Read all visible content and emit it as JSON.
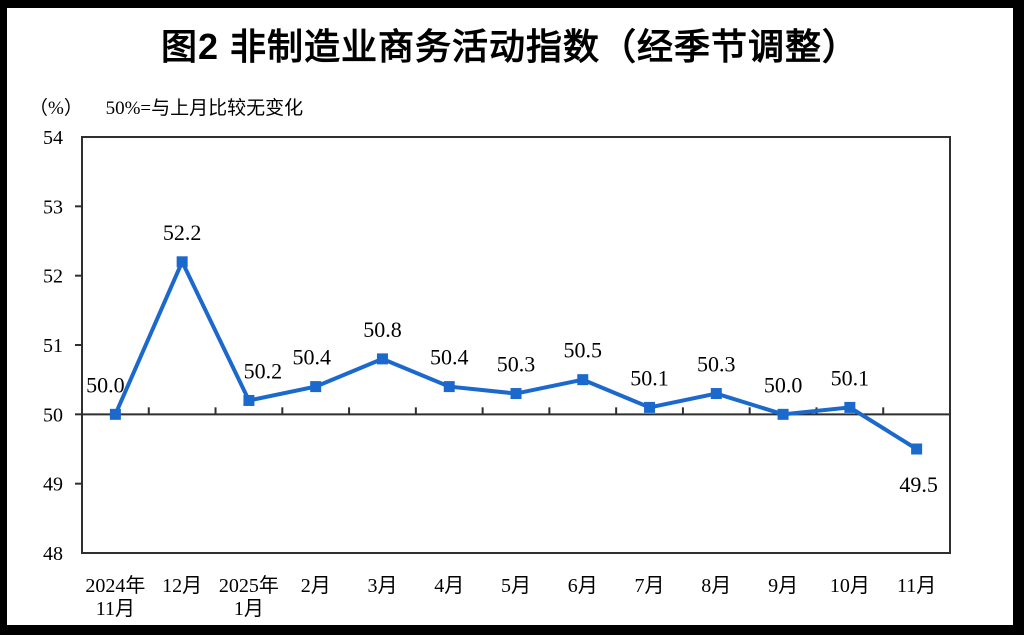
{
  "title": "图2 非制造业商务活动指数（经季节调整）",
  "unit_label": "（%）",
  "reference_note": "50%=与上月比较无变化",
  "chart_data": {
    "type": "line",
    "title": "图2 非制造业商务活动指数（经季节调整）",
    "ylabel": "%",
    "ylim": [
      48,
      54
    ],
    "yticks": [
      48,
      49,
      50,
      51,
      52,
      53,
      54
    ],
    "reference_line_y": 50,
    "grid": false,
    "legend_position": "none",
    "line_color": "#1C69CD",
    "axis_color": "#2f2f2f",
    "marker": "square",
    "categories": [
      "2024年11月",
      "12月",
      "2025年1月",
      "2月",
      "3月",
      "4月",
      "5月",
      "6月",
      "7月",
      "8月",
      "9月",
      "10月",
      "11月"
    ],
    "category_lines": [
      [
        "2024年",
        "11月"
      ],
      [
        "12月",
        ""
      ],
      [
        "2025年",
        "1月"
      ],
      [
        "2月",
        ""
      ],
      [
        "3月",
        ""
      ],
      [
        "4月",
        ""
      ],
      [
        "5月",
        ""
      ],
      [
        "6月",
        ""
      ],
      [
        "7月",
        ""
      ],
      [
        "8月",
        ""
      ],
      [
        "9月",
        ""
      ],
      [
        "10月",
        ""
      ],
      [
        "11月",
        ""
      ]
    ],
    "values": [
      50.0,
      52.2,
      50.2,
      50.4,
      50.8,
      50.4,
      50.3,
      50.5,
      50.1,
      50.3,
      50.0,
      50.1,
      49.5
    ],
    "value_labels": [
      "50.0",
      "52.2",
      "50.2",
      "50.4",
      "50.8",
      "50.4",
      "50.3",
      "50.5",
      "50.1",
      "50.3",
      "50.0",
      "50.1",
      "49.5"
    ],
    "label_below_indices": [
      12
    ],
    "label_dx": [
      -10,
      0,
      14,
      -4,
      0,
      0,
      0,
      0,
      0,
      0,
      0,
      0,
      2
    ]
  }
}
